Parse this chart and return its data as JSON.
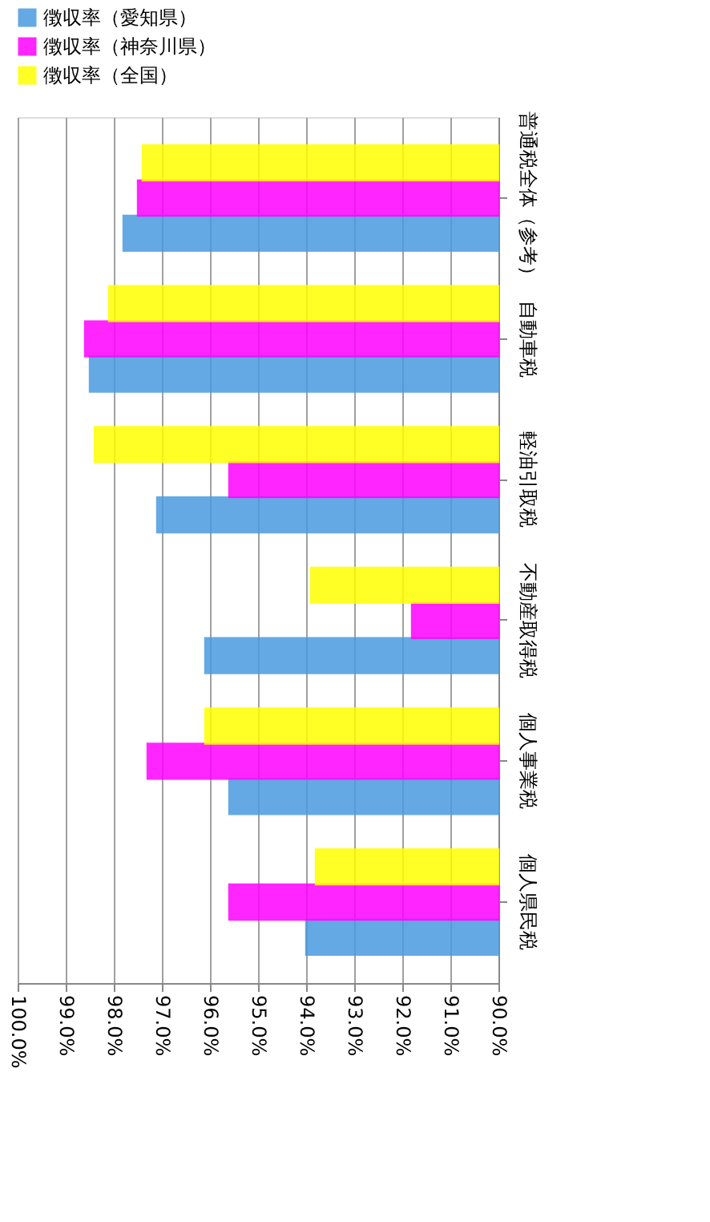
{
  "chart_data": {
    "type": "bar",
    "orientation": "horizontal",
    "categories": [
      "普通税全体（参考）",
      "自動車税",
      "軽油引取税",
      "不動産取得税",
      "個人事業税",
      "個人県民税"
    ],
    "series": [
      {
        "name": "徴収率（愛知県）",
        "color": "#4a9be0",
        "values": [
          97.8,
          98.5,
          97.1,
          96.1,
          95.6,
          94.0
        ]
      },
      {
        "name": "徴収率（神奈川県）",
        "color": "#ff00ff",
        "values": [
          97.5,
          98.6,
          95.6,
          91.8,
          97.3,
          95.6
        ]
      },
      {
        "name": "徴収率（全国）",
        "color": "#ffff00",
        "values": [
          97.4,
          98.1,
          98.4,
          93.9,
          96.1,
          93.8
        ]
      }
    ],
    "xlim": [
      100,
      90
    ],
    "xticks": [
      {
        "value": 100,
        "label": "100.0%"
      },
      {
        "value": 99,
        "label": "99.0%"
      },
      {
        "value": 98,
        "label": "98.0%"
      },
      {
        "value": 97,
        "label": "97.0%"
      },
      {
        "value": 96,
        "label": "96.0%"
      },
      {
        "value": 95,
        "label": "95.0%"
      },
      {
        "value": 94,
        "label": "94.0%"
      },
      {
        "value": 93,
        "label": "93.0%"
      },
      {
        "value": 92,
        "label": "92.0%"
      },
      {
        "value": 91,
        "label": "91.0%"
      },
      {
        "value": 90,
        "label": "90.0%"
      }
    ],
    "grid": "x",
    "legend": "top"
  }
}
